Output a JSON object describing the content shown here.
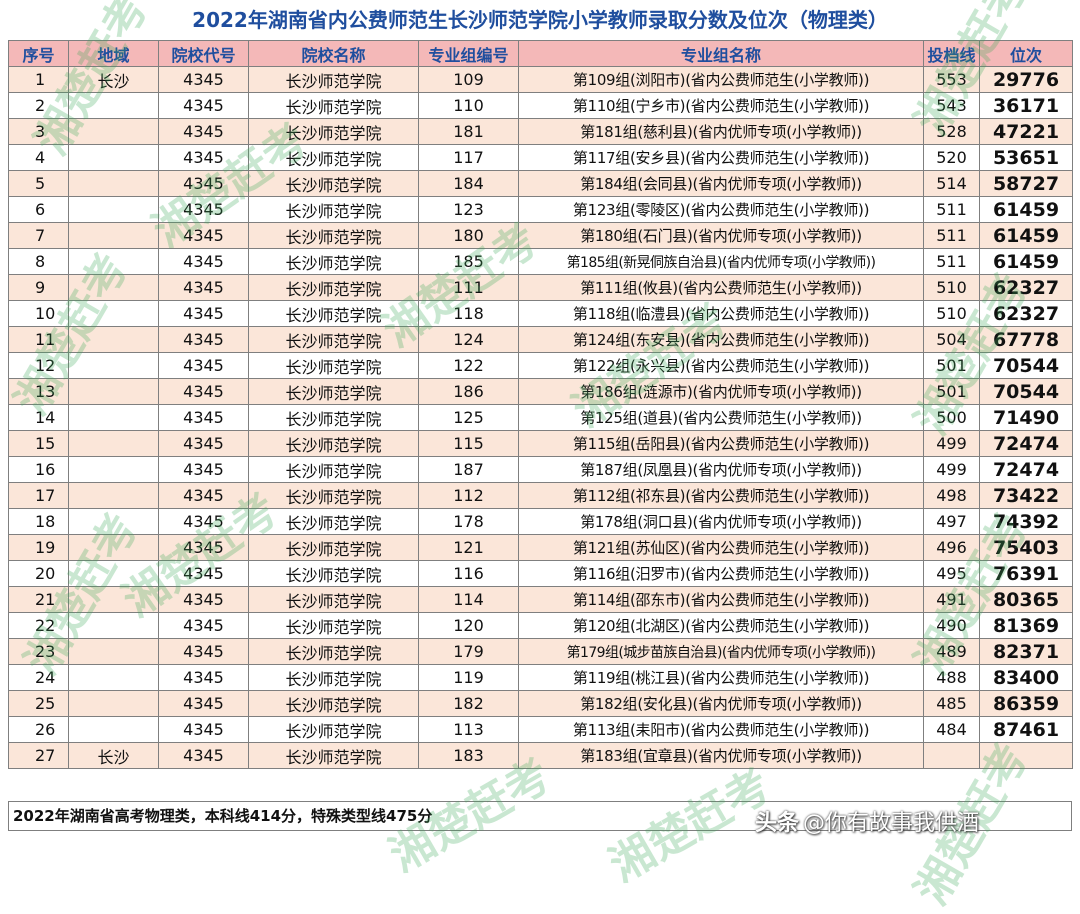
{
  "title": "2022年湖南省内公费师范生长沙师范学院小学教师录取分数及位次（物理类）",
  "columns": [
    "序号",
    "地域",
    "院校代号",
    "院校名称",
    "专业组编号",
    "专业组名称",
    "投档线",
    "位次"
  ],
  "rows": [
    [
      "1",
      "长沙",
      "4345",
      "长沙师范学院",
      "109",
      "第109组(浏阳市)(省内公费师范生(小学教师))",
      "553",
      "29776"
    ],
    [
      "2",
      "",
      "4345",
      "长沙师范学院",
      "110",
      "第110组(宁乡市)(省内公费师范生(小学教师))",
      "543",
      "36171"
    ],
    [
      "3",
      "",
      "4345",
      "长沙师范学院",
      "181",
      "第181组(慈利县)(省内优师专项(小学教师))",
      "528",
      "47221"
    ],
    [
      "4",
      "",
      "4345",
      "长沙师范学院",
      "117",
      "第117组(安乡县)(省内公费师范生(小学教师))",
      "520",
      "53651"
    ],
    [
      "5",
      "",
      "4345",
      "长沙师范学院",
      "184",
      "第184组(会同县)(省内优师专项(小学教师))",
      "514",
      "58727"
    ],
    [
      "6",
      "",
      "4345",
      "长沙师范学院",
      "123",
      "第123组(零陵区)(省内公费师范生(小学教师))",
      "511",
      "61459"
    ],
    [
      "7",
      "",
      "4345",
      "长沙师范学院",
      "180",
      "第180组(石门县)(省内优师专项(小学教师))",
      "511",
      "61459"
    ],
    [
      "8",
      "",
      "4345",
      "长沙师范学院",
      "185",
      "第185组(新晃侗族自治县)(省内优师专项(小学教师))",
      "511",
      "61459"
    ],
    [
      "9",
      "",
      "4345",
      "长沙师范学院",
      "111",
      "第111组(攸县)(省内公费师范生(小学教师))",
      "510",
      "62327"
    ],
    [
      "10",
      "",
      "4345",
      "长沙师范学院",
      "118",
      "第118组(临澧县)(省内公费师范生(小学教师))",
      "510",
      "62327"
    ],
    [
      "11",
      "",
      "4345",
      "长沙师范学院",
      "124",
      "第124组(东安县)(省内公费师范生(小学教师))",
      "504",
      "67778"
    ],
    [
      "12",
      "",
      "4345",
      "长沙师范学院",
      "122",
      "第122组(永兴县)(省内公费师范生(小学教师))",
      "501",
      "70544"
    ],
    [
      "13",
      "",
      "4345",
      "长沙师范学院",
      "186",
      "第186组(涟源市)(省内优师专项(小学教师))",
      "501",
      "70544"
    ],
    [
      "14",
      "",
      "4345",
      "长沙师范学院",
      "125",
      "第125组(道县)(省内公费师范生(小学教师))",
      "500",
      "71490"
    ],
    [
      "15",
      "",
      "4345",
      "长沙师范学院",
      "115",
      "第115组(岳阳县)(省内公费师范生(小学教师))",
      "499",
      "72474"
    ],
    [
      "16",
      "",
      "4345",
      "长沙师范学院",
      "187",
      "第187组(凤凰县)(省内优师专项(小学教师))",
      "499",
      "72474"
    ],
    [
      "17",
      "",
      "4345",
      "长沙师范学院",
      "112",
      "第112组(祁东县)(省内公费师范生(小学教师))",
      "498",
      "73422"
    ],
    [
      "18",
      "",
      "4345",
      "长沙师范学院",
      "178",
      "第178组(洞口县)(省内优师专项(小学教师))",
      "497",
      "74392"
    ],
    [
      "19",
      "",
      "4345",
      "长沙师范学院",
      "121",
      "第121组(苏仙区)(省内公费师范生(小学教师))",
      "496",
      "75403"
    ],
    [
      "20",
      "",
      "4345",
      "长沙师范学院",
      "116",
      "第116组(汨罗市)(省内公费师范生(小学教师))",
      "495",
      "76391"
    ],
    [
      "21",
      "",
      "4345",
      "长沙师范学院",
      "114",
      "第114组(邵东市)(省内公费师范生(小学教师))",
      "491",
      "80365"
    ],
    [
      "22",
      "",
      "4345",
      "长沙师范学院",
      "120",
      "第120组(北湖区)(省内公费师范生(小学教师))",
      "490",
      "81369"
    ],
    [
      "23",
      "",
      "4345",
      "长沙师范学院",
      "179",
      "第179组(城步苗族自治县)(省内优师专项(小学教师))",
      "489",
      "82371"
    ],
    [
      "24",
      "",
      "4345",
      "长沙师范学院",
      "119",
      "第119组(桃江县)(省内公费师范生(小学教师))",
      "488",
      "83400"
    ],
    [
      "25",
      "",
      "4345",
      "长沙师范学院",
      "182",
      "第182组(安化县)(省内优师专项(小学教师))",
      "485",
      "86359"
    ],
    [
      "26",
      "",
      "4345",
      "长沙师范学院",
      "113",
      "第113组(耒阳市)(省内公费师范生(小学教师))",
      "484",
      "87461"
    ],
    [
      "27",
      "长沙",
      "4345",
      "长沙师范学院",
      "183",
      "第183组(宜章县)(省内优师专项(小学教师))",
      "",
      ""
    ]
  ],
  "footer": "2022年湖南省高考物理类，本科线414分，特殊类型线475分",
  "watermark": "湘楚赶考",
  "credit": {
    "logo": "头条",
    "handle": "@你有故事我供酒"
  },
  "colors": {
    "header_bg": "#f4b8b8",
    "title": "#1f4e9e",
    "stripe": "#fbe6d9",
    "watermark": "#3caa5a"
  }
}
